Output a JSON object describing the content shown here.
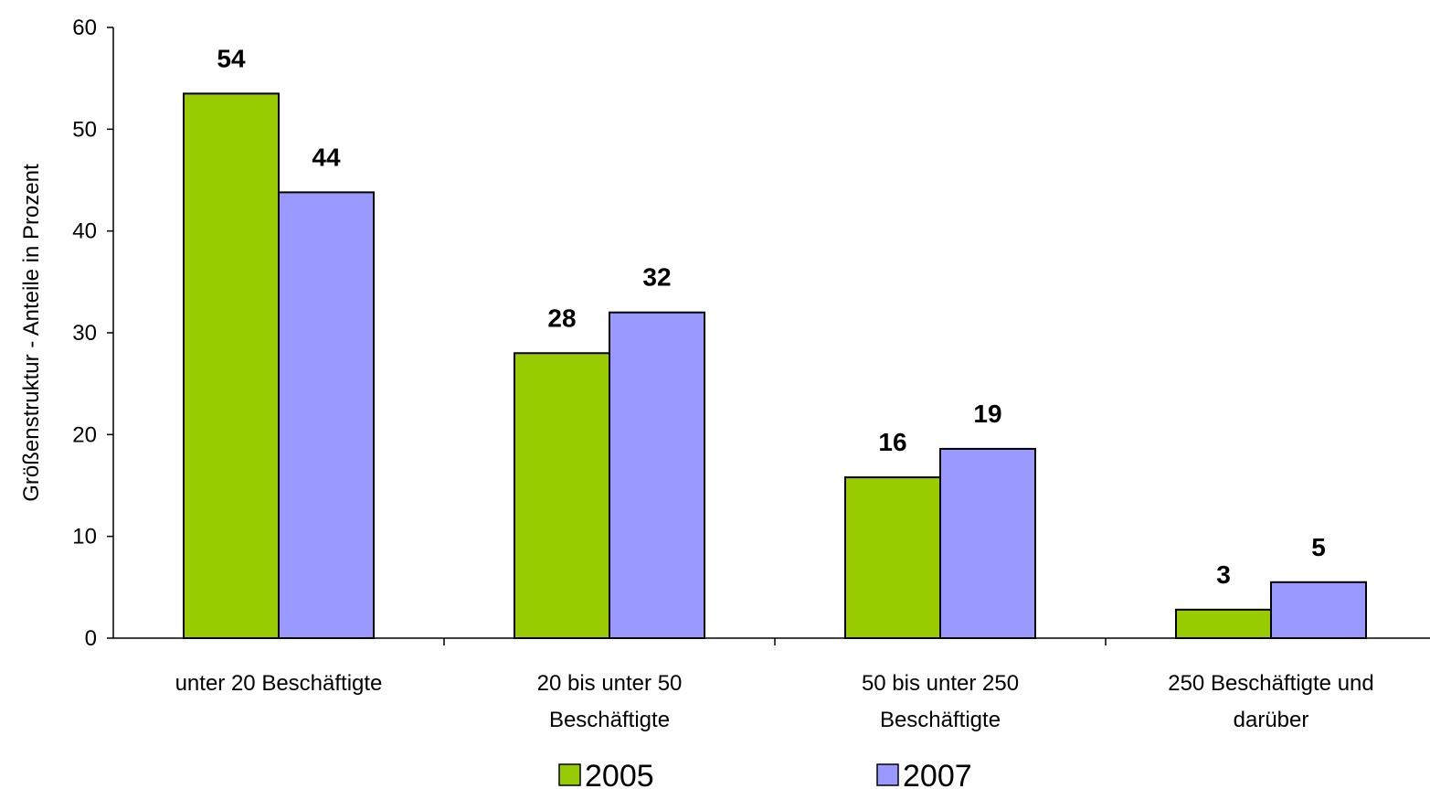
{
  "chart_data": {
    "type": "bar",
    "title": "",
    "xlabel": "",
    "ylabel": "Größenstruktur - Anteile in Prozent",
    "ylim": [
      0,
      60
    ],
    "yticks": [
      "0",
      "10",
      "20",
      "30",
      "40",
      "50",
      "60"
    ],
    "grid": false,
    "legend_position": "bottom",
    "categories": [
      [
        "unter 20 Beschäftigte"
      ],
      [
        "20 bis unter 50",
        "Beschäftigte"
      ],
      [
        "50 bis unter 250",
        "Beschäftigte"
      ],
      [
        "250 Beschäftigte und",
        "darüber"
      ]
    ],
    "series": [
      {
        "name": "2005",
        "color": "#99cc00",
        "values": [
          53.5,
          28.0,
          15.8,
          2.8
        ],
        "labels": [
          "54",
          "28",
          "16",
          "3"
        ]
      },
      {
        "name": "2007",
        "color": "#9999ff",
        "values": [
          43.8,
          32.0,
          18.6,
          5.5
        ],
        "labels": [
          "44",
          "32",
          "19",
          "5"
        ]
      }
    ]
  }
}
